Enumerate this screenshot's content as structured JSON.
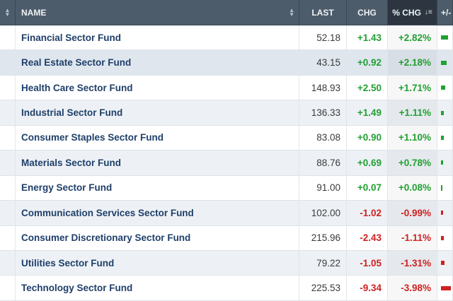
{
  "header": {
    "name_label": "NAME",
    "last_label": "LAST",
    "chg_label": "CHG",
    "pct_chg_label": "% CHG",
    "plusminus_label": "+/-"
  },
  "colors": {
    "positive": "#22a032",
    "negative": "#d02020",
    "header_bg": "#4d5c6b"
  },
  "rows": [
    {
      "name": "Financial Sector Fund",
      "last": "52.18",
      "chg": "+1.43",
      "pct": "+2.82%",
      "dir": "up",
      "pct_value": 2.82
    },
    {
      "name": "Real Estate Sector Fund",
      "last": "43.15",
      "chg": "+0.92",
      "pct": "+2.18%",
      "dir": "up",
      "pct_value": 2.18
    },
    {
      "name": "Health Care Sector Fund",
      "last": "148.93",
      "chg": "+2.50",
      "pct": "+1.71%",
      "dir": "up",
      "pct_value": 1.71
    },
    {
      "name": "Industrial Sector Fund",
      "last": "136.33",
      "chg": "+1.49",
      "pct": "+1.11%",
      "dir": "up",
      "pct_value": 1.11
    },
    {
      "name": "Consumer Staples Sector Fund",
      "last": "83.08",
      "chg": "+0.90",
      "pct": "+1.10%",
      "dir": "up",
      "pct_value": 1.1
    },
    {
      "name": "Materials Sector Fund",
      "last": "88.76",
      "chg": "+0.69",
      "pct": "+0.78%",
      "dir": "up",
      "pct_value": 0.78
    },
    {
      "name": "Energy Sector Fund",
      "last": "91.00",
      "chg": "+0.07",
      "pct": "+0.08%",
      "dir": "up",
      "pct_value": 0.08
    },
    {
      "name": "Communication Services Sector Fund",
      "last": "102.00",
      "chg": "-1.02",
      "pct": "-0.99%",
      "dir": "down",
      "pct_value": -0.99
    },
    {
      "name": "Consumer Discretionary Sector Fund",
      "last": "215.96",
      "chg": "-2.43",
      "pct": "-1.11%",
      "dir": "down",
      "pct_value": -1.11
    },
    {
      "name": "Utilities Sector Fund",
      "last": "79.22",
      "chg": "-1.05",
      "pct": "-1.31%",
      "dir": "down",
      "pct_value": -1.31
    },
    {
      "name": "Technology Sector Fund",
      "last": "225.53",
      "chg": "-9.34",
      "pct": "-3.98%",
      "dir": "down",
      "pct_value": -3.98
    }
  ]
}
